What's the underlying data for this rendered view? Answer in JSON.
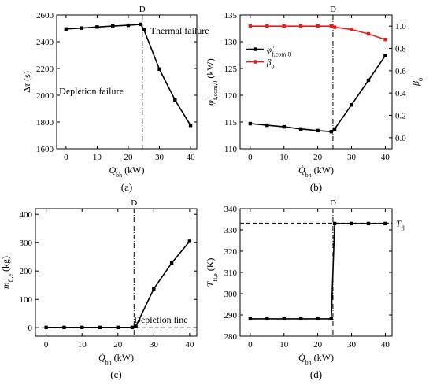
{
  "chart_data": [
    {
      "type": "line",
      "panel_label": "(a)",
      "xlabel": "Q̇bh (kW)",
      "ylabel": "Δτ (s)",
      "xlim": [
        -3,
        42
      ],
      "ylim": [
        1600,
        2600
      ],
      "xticks": [
        0,
        10,
        20,
        30,
        40
      ],
      "yticks": [
        1600,
        1800,
        2000,
        2200,
        2400,
        2600
      ],
      "vline": {
        "x": 24.5,
        "label": "D"
      },
      "annotations": [
        "Thermal failure",
        "Depletion failure"
      ],
      "series": [
        {
          "color": "#000000",
          "x": [
            0,
            5,
            10,
            15,
            20,
            24,
            25,
            30,
            35,
            40
          ],
          "y": [
            2495,
            2502,
            2510,
            2517,
            2523,
            2530,
            2490,
            2195,
            1965,
            1775
          ]
        }
      ]
    },
    {
      "type": "line",
      "panel_label": "(b)",
      "xlabel": "Q̇bh (kW)",
      "ylabel": "φ̇f,com,0 (kW)",
      "ylabel_right": "β0",
      "xlim": [
        -3,
        42
      ],
      "ylim": [
        110,
        135
      ],
      "ylim_right": [
        -0.1,
        1.1
      ],
      "xticks": [
        0,
        10,
        20,
        30,
        40
      ],
      "yticks": [
        110,
        115,
        120,
        125,
        130,
        135
      ],
      "yticks_right": [
        0.0,
        0.2,
        0.4,
        0.6,
        0.8,
        1.0
      ],
      "vline": {
        "x": 24.5,
        "label": "D"
      },
      "legend_position": "center-right",
      "series": [
        {
          "name": "φ̇f,com,0",
          "color": "#000000",
          "axis": "left",
          "x": [
            0,
            5,
            10,
            15,
            20,
            24,
            25,
            30,
            35,
            40
          ],
          "y": [
            114.7,
            114.4,
            114.1,
            113.7,
            113.4,
            113.2,
            113.7,
            118.2,
            122.8,
            127.4
          ]
        },
        {
          "name": "β0",
          "color": "#e02020",
          "axis": "right",
          "x": [
            0,
            5,
            10,
            15,
            20,
            24,
            25,
            30,
            35,
            40
          ],
          "y": [
            1.0,
            1.0,
            1.0,
            1.0,
            1.0,
            1.0,
            0.99,
            0.97,
            0.93,
            0.88
          ]
        }
      ]
    },
    {
      "type": "line",
      "panel_label": "(c)",
      "xlabel": "Q̇bh (kW)",
      "ylabel": "mfl,e (kg)",
      "xlim": [
        -3,
        42
      ],
      "ylim": [
        -30,
        420
      ],
      "xticks": [
        0,
        10,
        20,
        30,
        40
      ],
      "yticks": [
        0,
        100,
        200,
        300,
        400
      ],
      "vline": {
        "x": 24.5,
        "label": "D"
      },
      "hline": {
        "y": 0,
        "label": "Depletion line"
      },
      "series": [
        {
          "color": "#000000",
          "x": [
            0,
            5,
            10,
            15,
            20,
            24,
            25,
            30,
            35,
            40
          ],
          "y": [
            1,
            1,
            1,
            1,
            1,
            1,
            5,
            137,
            228,
            305
          ]
        }
      ]
    },
    {
      "type": "line",
      "panel_label": "(d)",
      "xlabel": "Q̇bh (kW)",
      "ylabel": "Tfl,e (K)",
      "xlim": [
        -3,
        42
      ],
      "ylim": [
        280,
        340
      ],
      "xticks": [
        0,
        10,
        20,
        30,
        40
      ],
      "yticks": [
        280,
        290,
        300,
        310,
        320,
        330,
        340
      ],
      "vline": {
        "x": 24.5,
        "label": "D"
      },
      "hline": {
        "y": 333.2,
        "label": "Tfl"
      },
      "series": [
        {
          "color": "#000000",
          "x": [
            0,
            5,
            10,
            15,
            20,
            24,
            25,
            30,
            35,
            40
          ],
          "y": [
            288.2,
            288.2,
            288.2,
            288.2,
            288.2,
            288.2,
            333.0,
            333.0,
            333.0,
            333.0
          ]
        }
      ]
    }
  ]
}
